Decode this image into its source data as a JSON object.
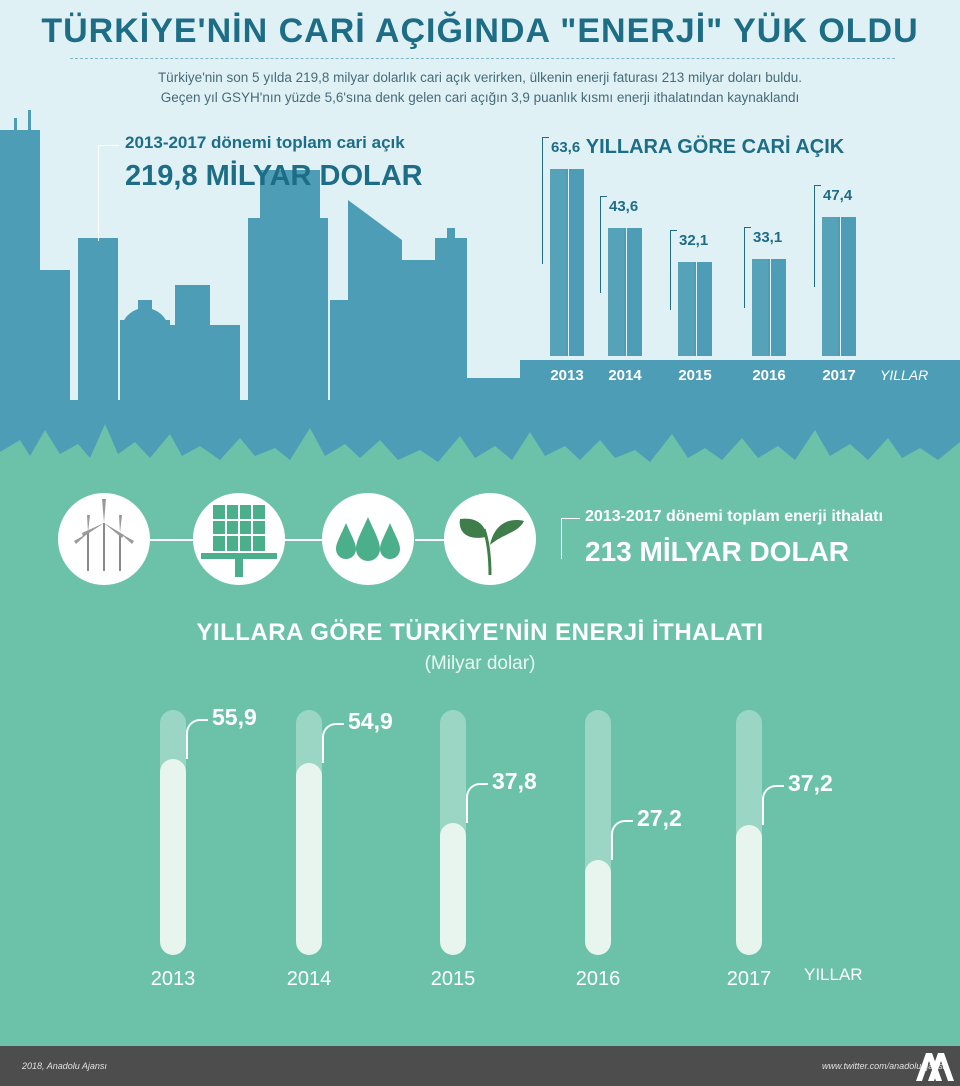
{
  "header": {
    "title": "TÜRKİYE'NİN CARİ AÇIĞINDA \"ENERJİ\" YÜK OLDU",
    "subtitle_line1": "Türkiye'nin son 5 yılda 219,8 milyar dolarlık cari açık verirken, ülkenin enerji faturası 213 milyar doları buldu.",
    "subtitle_line2": "Geçen yıl GSYH'nın yüzde 5,6'sına denk gelen cari açığın 3,9 puanlık kısmı enerji ithalatından kaynaklandı"
  },
  "cumulative_deficit": {
    "label": "2013-2017 dönemi toplam cari açık",
    "value": "219,8  MİLYAR DOLAR"
  },
  "cumulative_energy": {
    "label": "2013-2017 dönemi toplam enerji ithalatı",
    "value": "213 MİLYAR DOLAR"
  },
  "icons": [
    "wind-turbine-icon",
    "solar-panel-icon",
    "water-drops-icon",
    "leaf-icon"
  ],
  "colors": {
    "sky": "#e0f1f5",
    "skyline": "#4c9db5",
    "grass": "#6cc1a9",
    "heading": "#1d6d86",
    "tube_fill": "#e8f5ef",
    "tube_track": "#9ad6c3",
    "footer": "#4d4d4d"
  },
  "chart_data": [
    {
      "type": "bar",
      "title": "YILLARA GÖRE CARİ AÇIK",
      "xlabel": "YILLAR",
      "categories": [
        "2013",
        "2014",
        "2015",
        "2016",
        "2017"
      ],
      "values": [
        63.6,
        43.6,
        32.1,
        33.1,
        47.4
      ],
      "value_labels": [
        "63,6",
        "43,6",
        "32,1",
        "33,1",
        "47,4"
      ],
      "ylim": [
        0,
        80
      ],
      "grid": false,
      "legend": "none"
    },
    {
      "type": "bar",
      "title": "YILLARA GÖRE TÜRKİYE'NİN ENERJİ İTHALATI",
      "unit": "(Milyar dolar)",
      "xlabel": "YILLAR",
      "categories": [
        "2013",
        "2014",
        "2015",
        "2016",
        "2017"
      ],
      "values": [
        55.9,
        54.9,
        37.8,
        27.2,
        37.2
      ],
      "value_labels": [
        "55,9",
        "54,9",
        "37,8",
        "27,2",
        "37,2"
      ],
      "ylim": [
        0,
        70
      ],
      "grid": false,
      "legend": "none"
    }
  ],
  "footer": {
    "credit": "2018, Anadolu Ajansı",
    "twitter": "www.twitter.com/anadoluajansi",
    "logo_text": "AA"
  }
}
